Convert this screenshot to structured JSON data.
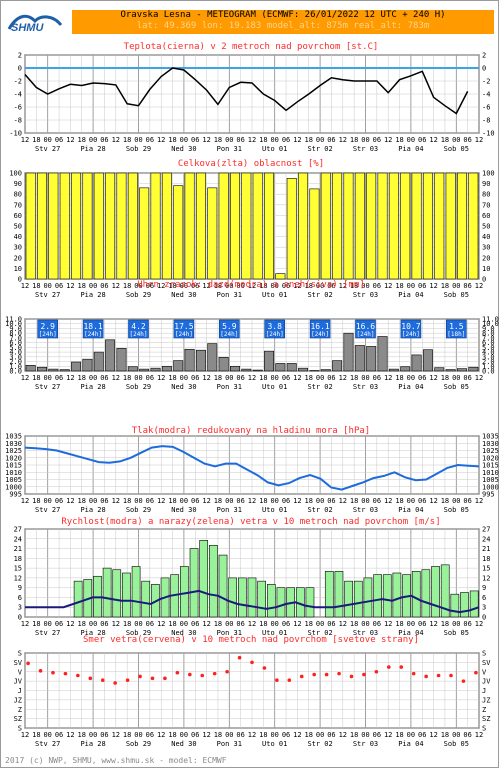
{
  "header": {
    "title": "Oravska Lesna - METEOGRAM (ECMWF: 26/01/2022 12 UTC + 240 H)",
    "subtitle": "lat: 49.369  lon: 19.183  model_alt: 875m  real_alt: 783m"
  },
  "logo_text": "SHMU",
  "footer": "2017 (c) NWP, SHMU, www.shmu.sk - model: ECMWF",
  "hour_labels": [
    "12",
    "18",
    "00",
    "06",
    "12",
    "18",
    "00",
    "06",
    "12",
    "18",
    "00",
    "06",
    "12",
    "18",
    "00",
    "06",
    "12",
    "18",
    "00",
    "06",
    "12",
    "18",
    "00",
    "06",
    "12",
    "18",
    "00",
    "06",
    "12",
    "18",
    "00",
    "06",
    "12",
    "18",
    "00",
    "06",
    "12",
    "18",
    "00",
    "06",
    "12"
  ],
  "days": [
    "Stv 27",
    "Pia 28",
    "Sob 29",
    "Ned 30",
    "Pon 31",
    "Uto 01",
    "Str 02",
    "Str 03",
    "Pia 04",
    "Sob 05"
  ],
  "colors": {
    "temp_line": "#000000",
    "zero_line": "#3ba3e6",
    "cloud_fill": "#ffff33",
    "precip_fill": "#8a8a8a",
    "rain_fill": "#1e6bdc",
    "pressure_line": "#1e6bdc",
    "gust_fill": "#99f299",
    "wind_line": "#1a1a7a",
    "dir_dot": "#ff2020",
    "title": "#ff2a2a",
    "header_bg": "#ff9a00",
    "grid": "#c8c8c8"
  },
  "chart_data": [
    {
      "type": "line",
      "title": "Teplota(cierna) v 2 metroch nad povrchom [st.C]",
      "ylim": [
        -10,
        2
      ],
      "yticks": [
        "2",
        "0",
        "-2",
        "-4",
        "-6",
        "-8",
        "-10"
      ],
      "series": [
        {
          "values": [
            -1.0,
            -3.0,
            -4.0,
            -3.2,
            -2.5,
            -2.7,
            -2.3,
            -2.4,
            -2.6,
            -5.5,
            -5.8,
            -3.3,
            -1.3,
            0.0,
            -0.3,
            -1.8,
            -3.4,
            -5.6,
            -3.0,
            -2.2,
            -2.3,
            -4.0,
            -5.0,
            -6.5,
            -5.2,
            -4.0,
            -2.7,
            -1.5,
            -1.8,
            -2.0,
            -2.0,
            -2.0,
            -3.8,
            -1.8,
            -1.2,
            -0.5,
            -4.5,
            -5.8,
            -7.0,
            -3.6
          ]
        }
      ],
      "grid": true
    },
    {
      "type": "bar",
      "title": "Celkova(zlta) oblacnost [%]",
      "ylim": [
        0,
        100
      ],
      "yticks": [
        "100",
        "90",
        "80",
        "70",
        "60",
        "50",
        "40",
        "30",
        "20",
        "10",
        "0"
      ],
      "values": [
        100,
        100,
        100,
        100,
        100,
        100,
        100,
        100,
        100,
        100,
        86,
        100,
        100,
        88,
        100,
        100,
        86,
        100,
        100,
        100,
        100,
        100,
        5,
        95,
        100,
        85,
        100,
        100,
        100,
        100,
        100,
        100,
        100,
        100,
        100,
        100,
        100,
        100,
        100,
        100,
        100,
        100,
        100,
        100,
        100,
        100,
        100,
        100,
        100,
        100,
        100,
        100,
        100,
        100,
        100,
        100,
        100,
        100,
        100,
        100,
        100,
        100,
        100,
        100,
        100,
        100,
        100,
        100,
        100,
        100,
        100,
        100,
        100,
        100,
        100,
        100,
        100,
        100,
        100,
        100,
        100,
        100,
        100,
        100,
        100,
        100,
        100,
        100,
        100,
        100,
        100,
        100,
        100,
        100,
        100,
        100,
        14,
        100,
        100,
        100,
        100,
        100,
        100,
        100,
        100,
        100,
        100,
        100,
        100,
        98,
        92,
        100
      ],
      "grid": true
    },
    {
      "type": "bar",
      "title": "Uhrn zrazok: dazd(modra) a sneh(siva) [mm]",
      "ylim": [
        0,
        11
      ],
      "yticks": [
        "11.0",
        "10.0",
        "9.0",
        "8.0",
        "7.0",
        "6.0",
        "5.0",
        "4.0",
        "3.0",
        "2.0",
        "1.0",
        "0.0"
      ],
      "values": [
        1.2,
        0.8,
        0.4,
        0.3,
        1.9,
        2.5,
        4.0,
        6.6,
        4.8,
        0.9,
        0.4,
        0.6,
        1.0,
        2.2,
        4.6,
        4.4,
        5.8,
        2.9,
        1.0,
        0.4,
        0.2,
        4.2,
        1.6,
        1.6,
        0.6,
        0.1,
        0.3,
        2.2,
        8.0,
        5.4,
        5.2,
        7.3,
        0.4,
        0.9,
        3.4,
        4.5,
        0.7,
        0.3,
        0.5,
        0.8
      ],
      "totals": [
        {
          "value": "2.9",
          "period": "[24h]"
        },
        {
          "value": "18.1",
          "period": "[24h]"
        },
        {
          "value": "4.2",
          "period": "[24h]"
        },
        {
          "value": "17.5",
          "period": "[24h]"
        },
        {
          "value": "5.9",
          "period": "[24h]"
        },
        {
          "value": "3.8",
          "period": "[24h]"
        },
        {
          "value": "16.1",
          "period": "[24h]"
        },
        {
          "value": "16.6",
          "period": "[24h]"
        },
        {
          "value": "10.7",
          "period": "[24h]"
        },
        {
          "value": "1.5",
          "period": "[18h]"
        }
      ],
      "grid": true
    },
    {
      "type": "line",
      "title": "Tlak(modra) redukovany na hladinu mora [hPa]",
      "ylim": [
        995,
        1035
      ],
      "yticks": [
        "1035",
        "1030",
        "1025",
        "1020",
        "1015",
        "1010",
        "1005",
        "1000",
        "995"
      ],
      "series": [
        {
          "values": [
            1027,
            1026.5,
            1026,
            1025,
            1023,
            1021,
            1019,
            1017,
            1016.5,
            1017.5,
            1020,
            1023.5,
            1027,
            1028,
            1027.5,
            1024,
            1020,
            1016,
            1014,
            1016,
            1016,
            1012,
            1008,
            1003,
            1001,
            1002.5,
            1006,
            1008,
            1005.5,
            999.5,
            998,
            1000.5,
            1003,
            1006,
            1007.5,
            1010,
            1006.5,
            1004.5,
            1005,
            1009,
            1013,
            1015,
            1014.5,
            1014
          ]
        }
      ],
      "grid": true
    },
    {
      "type": "bar",
      "title": "Rychlost(modra) a narazy(zelena) vetra v 10 metroch nad povrchom [m/s]",
      "ylim": [
        0,
        27
      ],
      "yticks": [
        "27",
        "24",
        "21",
        "18",
        "15",
        "12",
        "9",
        "6",
        "3",
        "0"
      ],
      "values": [
        0,
        0,
        0,
        0,
        0,
        11,
        11.5,
        12.5,
        15,
        14.5,
        13.5,
        15.5,
        11,
        10,
        12,
        13,
        15.5,
        21,
        23.5,
        22,
        19,
        12,
        12,
        12,
        11,
        10,
        9,
        9,
        9,
        9,
        0,
        14,
        14,
        11,
        11,
        12,
        13,
        13,
        13.5,
        13,
        14,
        14.5,
        15.5,
        16,
        7,
        7.5,
        8
      ],
      "series": [
        {
          "name": "wind",
          "values": [
            3,
            3,
            3,
            3,
            3,
            4,
            5,
            6,
            6,
            5.5,
            5,
            5,
            4.5,
            4,
            5.5,
            6.5,
            7,
            7.5,
            8,
            7,
            6.5,
            5,
            4,
            3.5,
            3,
            2.5,
            3,
            4,
            4.5,
            3.5,
            3,
            3,
            3,
            3.5,
            4,
            4.5,
            5,
            5.5,
            5,
            6,
            6.5,
            5,
            4,
            3,
            2,
            1.5,
            2,
            3
          ]
        }
      ],
      "grid": true
    },
    {
      "type": "scatter",
      "title": "Smer vetra(cervena) v 10 metroch nad povrchom [svetove strany]",
      "yticks": [
        "S",
        "SV",
        "V",
        "JV",
        "J",
        "JZ",
        "Z",
        "SZ",
        "S"
      ],
      "values": [
        6.9,
        6.7,
        6.1,
        5.9,
        5.9,
        5.8,
        5.8,
        5.8,
        5.6,
        5.5,
        5.3,
        5.0,
        5.1,
        5.0,
        4.8,
        4.7,
        5.1,
        5.4,
        5.5,
        5.4,
        5.3,
        5.3,
        5.3,
        5.8,
        5.9,
        5.7,
        5.7,
        5.4,
        5.6,
        5.9,
        5.8,
        6.0,
        6.0,
        6.0,
        7.5,
        7.6,
        7.0,
        6.5,
        6.4,
        5.8,
        5.1,
        5.0,
        5.1,
        5.5,
        5.5,
        5.6,
        5.7,
        5.7,
        5.7,
        5.6,
        5.8,
        5.9,
        5.5,
        5.5,
        5.7,
        5.7,
        6.0,
        6.2,
        6.5,
        6.3,
        6.5,
        5.7,
        5.8,
        5.6,
        5.5,
        5.5,
        5.6,
        5.7,
        5.6,
        5.6,
        5.0,
        5.6,
        5.9
      ],
      "grid": true
    }
  ]
}
